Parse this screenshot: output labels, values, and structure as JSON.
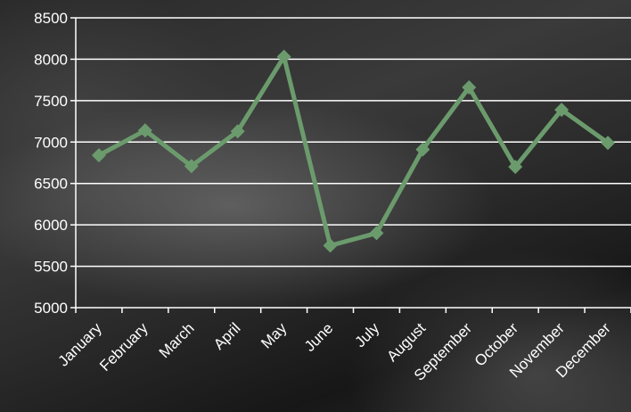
{
  "chart_data": {
    "type": "line",
    "categories": [
      "January",
      "February",
      "March",
      "April",
      "May",
      "June",
      "July",
      "August",
      "September",
      "October",
      "November",
      "December"
    ],
    "series": [
      {
        "values": [
          6840,
          7140,
          6710,
          7130,
          8030,
          5750,
          5900,
          6910,
          7660,
          6700,
          7390,
          6990
        ]
      }
    ],
    "ylim": [
      5000,
      8500
    ],
    "yticks": [
      5000,
      5500,
      6000,
      6500,
      7000,
      7500,
      8000,
      8500
    ],
    "grid": true,
    "line_color": "#6b9b6d",
    "grid_color": "#ffffff",
    "text_color": "#ffffff",
    "marker": "diamond"
  }
}
